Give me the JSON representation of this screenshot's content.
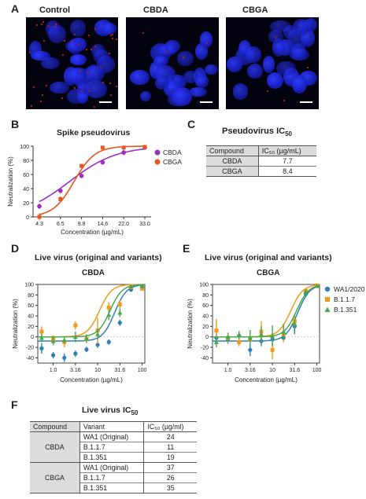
{
  "panels": {
    "A": "A",
    "B": "B",
    "C": "C",
    "D": "D",
    "E": "E",
    "F": "F"
  },
  "microscopy": {
    "labels": [
      "Control",
      "CBDA",
      "CBGA"
    ]
  },
  "colors": {
    "cbda": "#9b2fc0",
    "cbga": "#e8561f",
    "wa1": "#2d7fb8",
    "b117": "#f39a1d",
    "b1351": "#4aa84a",
    "nuclei": "#2230e0",
    "tableHeader": "#dcdcdc"
  },
  "chartB": {
    "title": "Spike pseudovirus",
    "chart_data": {
      "type": "line",
      "title": "Spike pseudovirus",
      "xlabel": "Concentration (µg/mL)",
      "ylabel": "Neutralization (%)",
      "x_tick_labels": [
        "4.3",
        "6.5",
        "9.8",
        "14.6",
        "22.0",
        "33.0"
      ],
      "ylim": [
        0,
        100
      ],
      "yticks": [
        0,
        20,
        40,
        60,
        80,
        100
      ],
      "legend_position": "top-right",
      "series": [
        {
          "name": "CBDA",
          "color": "#9b2fc0",
          "ic50": 7.7,
          "hill": 2.2,
          "points": [
            {
              "x": "4.3",
              "y": 15,
              "err": 4
            },
            {
              "x": "6.5",
              "y": 37,
              "err": 4
            },
            {
              "x": "9.8",
              "y": 58,
              "err": 3
            },
            {
              "x": "14.6",
              "y": 77,
              "err": 3
            },
            {
              "x": "22.0",
              "y": 91,
              "err": 4
            },
            {
              "x": "33.0",
              "y": 98,
              "err": 2
            }
          ]
        },
        {
          "name": "CBGA",
          "color": "#e8561f",
          "ic50": 8.4,
          "hill": 5.0,
          "points": [
            {
              "x": "4.3",
              "y": 0,
              "err": 5
            },
            {
              "x": "6.5",
              "y": 25,
              "err": 4
            },
            {
              "x": "9.8",
              "y": 72,
              "err": 3
            },
            {
              "x": "14.6",
              "y": 98,
              "err": 2
            },
            {
              "x": "22.0",
              "y": 98,
              "err": 2
            },
            {
              "x": "33.0",
              "y": 99,
              "err": 1
            }
          ]
        }
      ]
    }
  },
  "tableC": {
    "title": "Pseudovirus IC",
    "title_sub": "50",
    "header": [
      "Compound",
      "IC₅₀ (µg/mL)"
    ],
    "rows": [
      [
        "CBDA",
        "7.7"
      ],
      [
        "CBGA",
        "8.4"
      ]
    ]
  },
  "chartD": {
    "section_title": "Live virus (original and variants)",
    "title": "CBDA",
    "chart_data": {
      "type": "line",
      "title": "CBDA",
      "xlabel": "Concentration (µg/mL)",
      "ylabel": "Neutralization (%)",
      "x_tick_labels": [
        "1.0",
        "3.16",
        "10",
        "31.6",
        "100"
      ],
      "ylim": [
        -50,
        100
      ],
      "yticks": [
        -40,
        -20,
        0,
        20,
        40,
        60,
        80,
        100
      ],
      "series": [
        {
          "name": "WA1/2020",
          "ic50": 24,
          "points": [
            {
              "x": 0.55,
              "y": -22,
              "err": 10
            },
            {
              "x": 1.0,
              "y": -35,
              "err": 6
            },
            {
              "x": 1.78,
              "y": -40,
              "err": 8
            },
            {
              "x": 3.16,
              "y": -32,
              "err": 6
            },
            {
              "x": 5.62,
              "y": -24,
              "err": 5
            },
            {
              "x": 10,
              "y": -15,
              "err": 6
            },
            {
              "x": 17.8,
              "y": -10,
              "err": 5
            },
            {
              "x": 31.6,
              "y": 27,
              "err": 6
            },
            {
              "x": 56.2,
              "y": 90,
              "err": 4
            },
            {
              "x": 100,
              "y": 95,
              "err": 3
            }
          ]
        },
        {
          "name": "B.1.1.7",
          "ic50": 11,
          "points": [
            {
              "x": 0.55,
              "y": 10,
              "err": 10
            },
            {
              "x": 1.0,
              "y": -5,
              "err": 8
            },
            {
              "x": 1.78,
              "y": -10,
              "err": 10
            },
            {
              "x": 3.16,
              "y": 22,
              "err": 8
            },
            {
              "x": 5.62,
              "y": -4,
              "err": 8
            },
            {
              "x": 10,
              "y": 12,
              "err": 25
            },
            {
              "x": 17.8,
              "y": 56,
              "err": 10
            },
            {
              "x": 31.6,
              "y": 62,
              "err": 8
            },
            {
              "x": 56.2,
              "y": 95,
              "err": 4
            },
            {
              "x": 100,
              "y": 92,
              "err": 3
            }
          ]
        },
        {
          "name": "B.1.351",
          "ic50": 19,
          "points": [
            {
              "x": 0.55,
              "y": -2,
              "err": 8
            },
            {
              "x": 1.0,
              "y": -8,
              "err": 8
            },
            {
              "x": 1.78,
              "y": -6,
              "err": 6
            },
            {
              "x": 3.16,
              "y": 0,
              "err": 10
            },
            {
              "x": 5.62,
              "y": -3,
              "err": 8
            },
            {
              "x": 10,
              "y": 5,
              "err": 10
            },
            {
              "x": 17.8,
              "y": 42,
              "err": 10
            },
            {
              "x": 31.6,
              "y": 46,
              "err": 8
            },
            {
              "x": 56.2,
              "y": 96,
              "err": 3
            },
            {
              "x": 100,
              "y": 97,
              "err": 2
            }
          ]
        }
      ]
    }
  },
  "chartE": {
    "section_title": "Live virus (original and variants)",
    "title": "CBGA",
    "legend": [
      "WA1/2020",
      "B.1.1.7",
      "B.1.351"
    ],
    "chart_data": {
      "type": "line",
      "title": "CBGA",
      "xlabel": "Concentration (µg/mL)",
      "ylabel": "Neutralization (%)",
      "x_tick_labels": [
        "1.0",
        "3.16",
        "10",
        "31.6",
        "100"
      ],
      "ylim": [
        -50,
        100
      ],
      "yticks": [
        -40,
        -20,
        0,
        20,
        40,
        60,
        80,
        100
      ],
      "legend_position": "right",
      "series": [
        {
          "name": "WA1/2020",
          "ic50": 37,
          "points": [
            {
              "x": 0.55,
              "y": -2,
              "err": 10
            },
            {
              "x": 1.0,
              "y": -5,
              "err": 8
            },
            {
              "x": 1.78,
              "y": 2,
              "err": 8
            },
            {
              "x": 3.16,
              "y": -25,
              "err": 12
            },
            {
              "x": 5.62,
              "y": -8,
              "err": 10
            },
            {
              "x": 10,
              "y": -5,
              "err": 12
            },
            {
              "x": 17.8,
              "y": -2,
              "err": 8
            },
            {
              "x": 31.6,
              "y": 20,
              "err": 15
            },
            {
              "x": 56.2,
              "y": 82,
              "err": 5
            },
            {
              "x": 100,
              "y": 98,
              "err": 2
            }
          ]
        },
        {
          "name": "B.1.1.7",
          "ic50": 26,
          "points": [
            {
              "x": 0.55,
              "y": 12,
              "err": 22
            },
            {
              "x": 1.0,
              "y": -2,
              "err": 8
            },
            {
              "x": 1.78,
              "y": -10,
              "err": 8
            },
            {
              "x": 3.16,
              "y": -5,
              "err": 8
            },
            {
              "x": 5.62,
              "y": 10,
              "err": 20
            },
            {
              "x": 10,
              "y": -25,
              "err": 18
            },
            {
              "x": 17.8,
              "y": 5,
              "err": 15
            },
            {
              "x": 31.6,
              "y": 30,
              "err": 10
            },
            {
              "x": 56.2,
              "y": 88,
              "err": 4
            },
            {
              "x": 100,
              "y": 98,
              "err": 2
            }
          ]
        },
        {
          "name": "B.1.351",
          "ic50": 35,
          "points": [
            {
              "x": 0.55,
              "y": -10,
              "err": 10
            },
            {
              "x": 1.0,
              "y": 0,
              "err": 8
            },
            {
              "x": 1.78,
              "y": 3,
              "err": 8
            },
            {
              "x": 3.16,
              "y": -2,
              "err": 15
            },
            {
              "x": 5.62,
              "y": 5,
              "err": 15
            },
            {
              "x": 10,
              "y": 2,
              "err": 20
            },
            {
              "x": 17.8,
              "y": 10,
              "err": 15
            },
            {
              "x": 31.6,
              "y": 25,
              "err": 10
            },
            {
              "x": 56.2,
              "y": 86,
              "err": 5
            },
            {
              "x": 100,
              "y": 97,
              "err": 2
            }
          ]
        }
      ]
    }
  },
  "tableF": {
    "title": "Live virus IC",
    "title_sub": "50",
    "header": [
      "Compound",
      "Variant",
      "IC₅₀ (µg/ml)"
    ],
    "groups": [
      {
        "compound": "CBDA",
        "rows": [
          [
            "WA1 (Original)",
            "24"
          ],
          [
            "B.1.1.7",
            "11"
          ],
          [
            "B.1.351",
            "19"
          ]
        ]
      },
      {
        "compound": "CBGA",
        "rows": [
          [
            "WA1 (Original)",
            "37"
          ],
          [
            "B.1.1.7",
            "26"
          ],
          [
            "B.1.351",
            "35"
          ]
        ]
      }
    ]
  }
}
